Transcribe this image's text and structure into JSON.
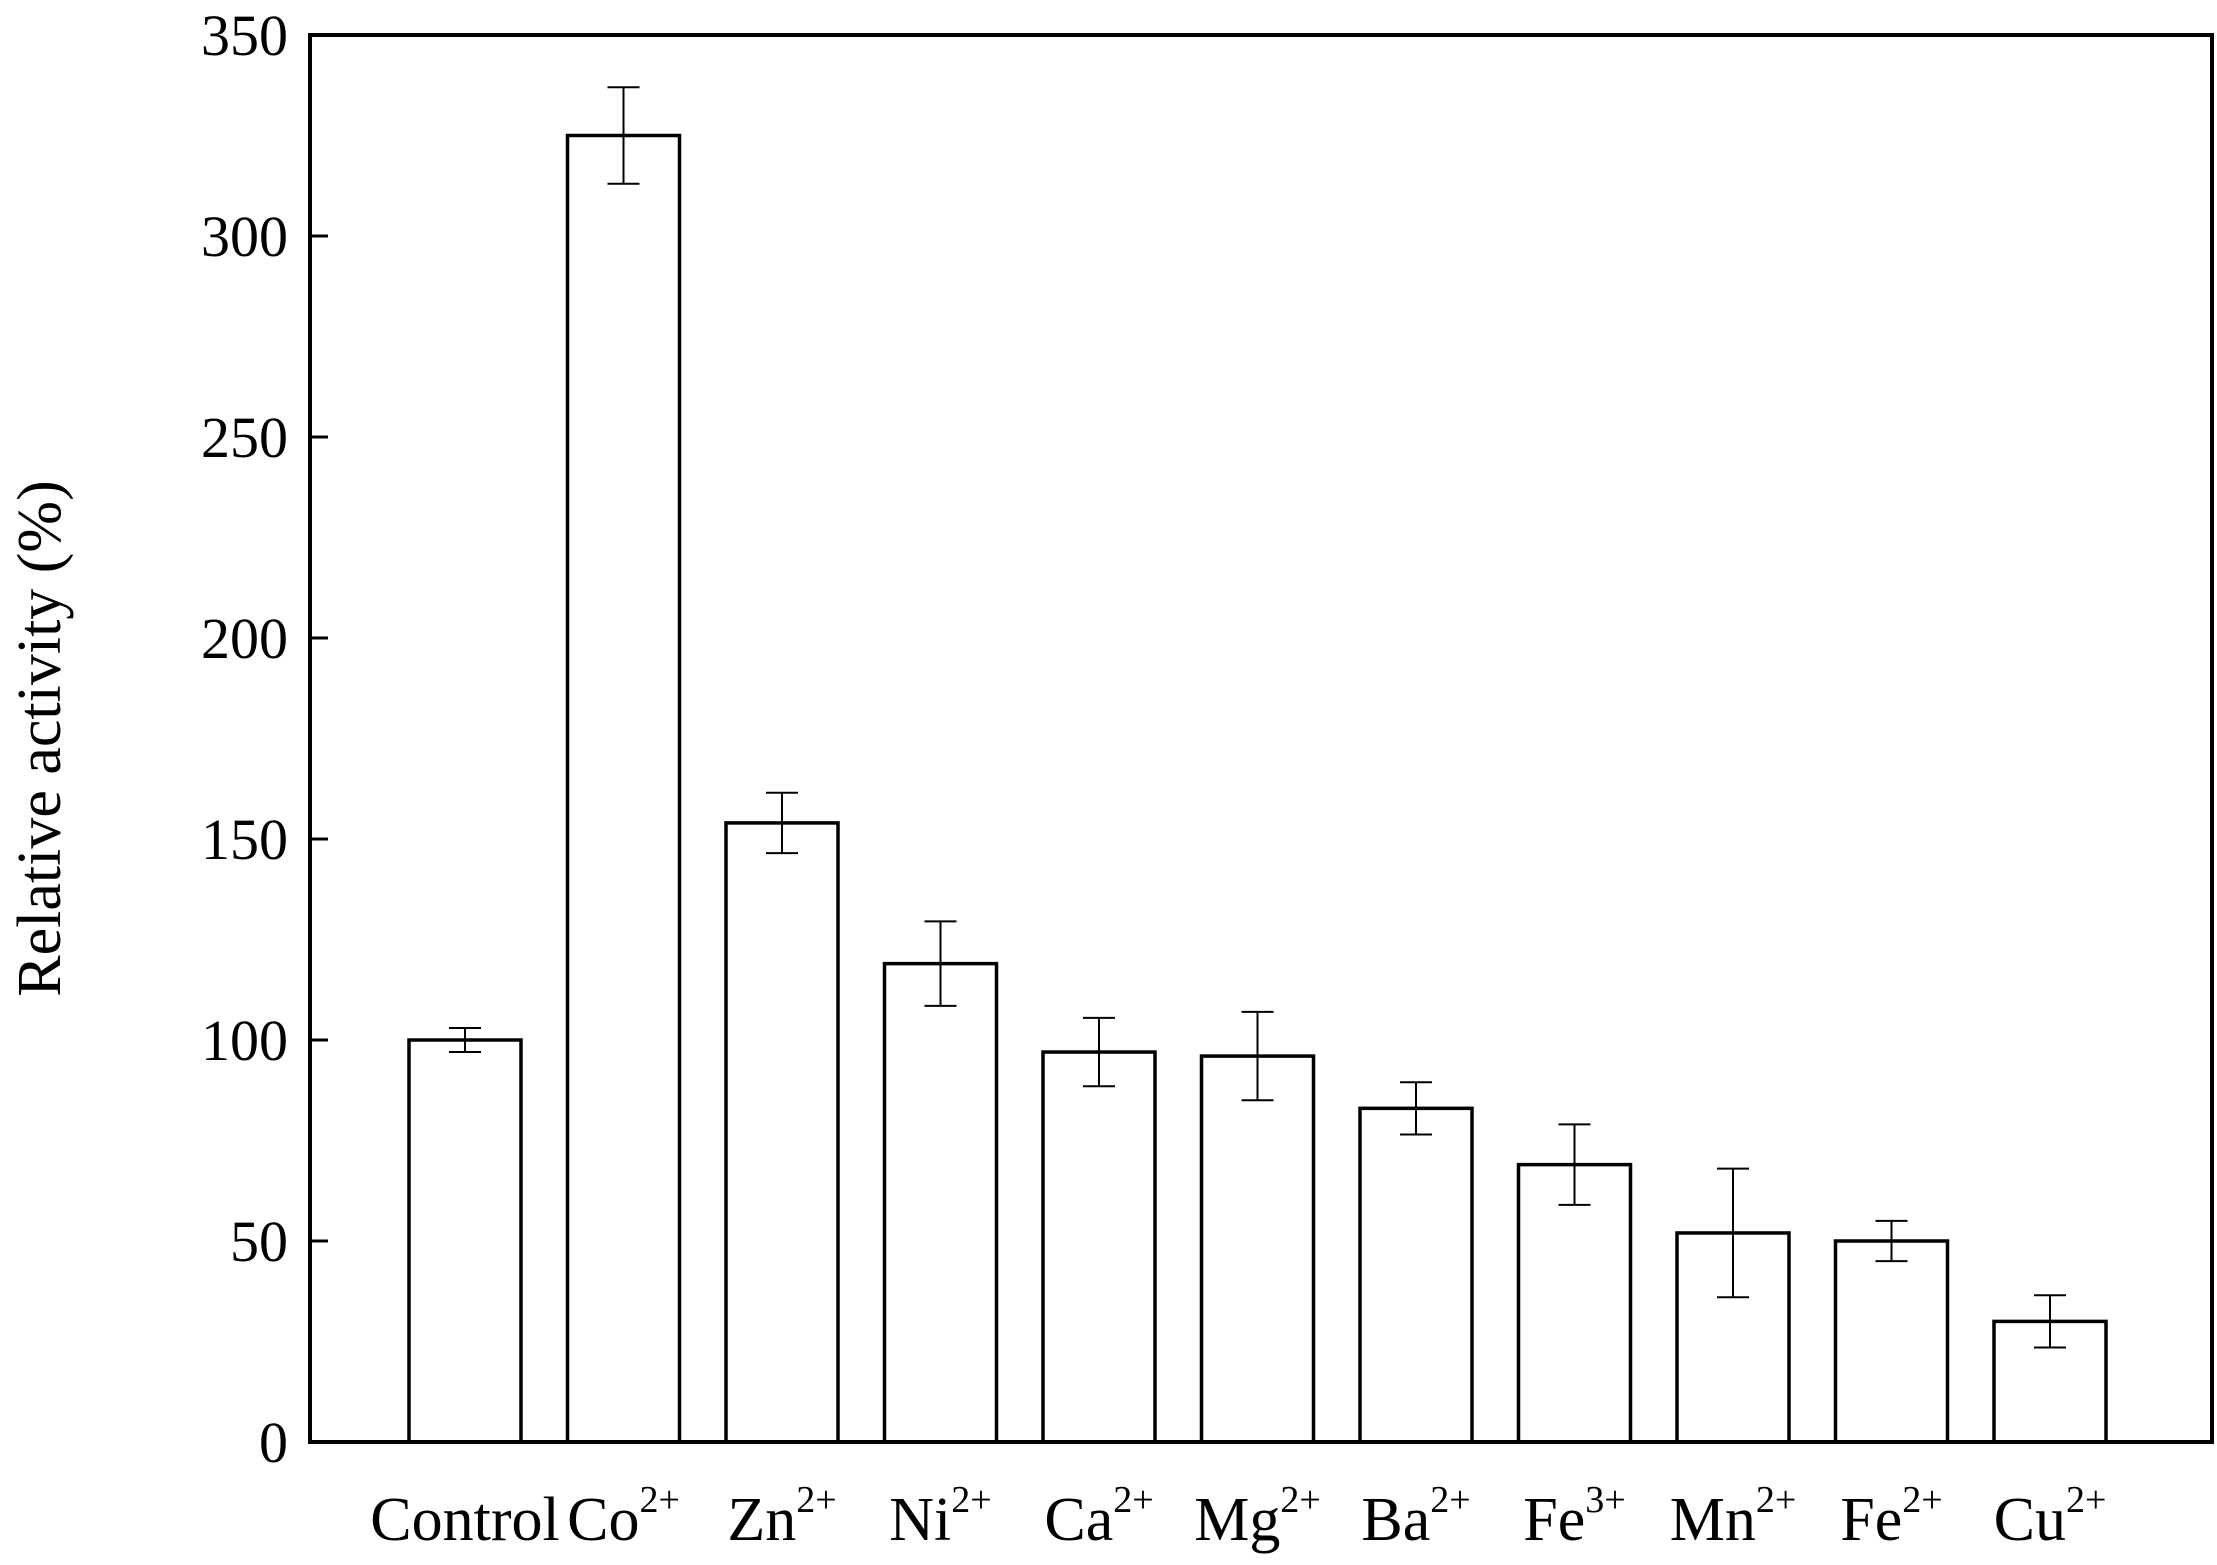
{
  "chart_data": {
    "type": "bar",
    "title": "",
    "xlabel": "",
    "ylabel": "Relative activity (%)",
    "ylim": [
      0,
      350
    ],
    "yticks": [
      0,
      50,
      100,
      150,
      200,
      250,
      300,
      350
    ],
    "grid": false,
    "legend": "none",
    "categories": [
      {
        "base": "Control",
        "sup": ""
      },
      {
        "base": "Co",
        "sup": "2+"
      },
      {
        "base": "Zn",
        "sup": "2+"
      },
      {
        "base": "Ni",
        "sup": "2+"
      },
      {
        "base": "Ca",
        "sup": "2+"
      },
      {
        "base": "Mg",
        "sup": "2+"
      },
      {
        "base": "Ba",
        "sup": "2+"
      },
      {
        "base": "Fe",
        "sup": "3+"
      },
      {
        "base": "Mn",
        "sup": "2+"
      },
      {
        "base": "Fe",
        "sup": "2+"
      },
      {
        "base": "Cu",
        "sup": "2+"
      }
    ],
    "values": [
      100,
      325,
      154,
      119,
      97,
      96,
      83,
      69,
      52,
      50,
      30
    ],
    "errors": [
      3,
      12,
      7.5,
      10.5,
      8.5,
      11,
      6.5,
      10,
      16,
      5,
      6.5
    ],
    "bar_fill": "#ffffff",
    "bar_stroke": "#000000"
  }
}
